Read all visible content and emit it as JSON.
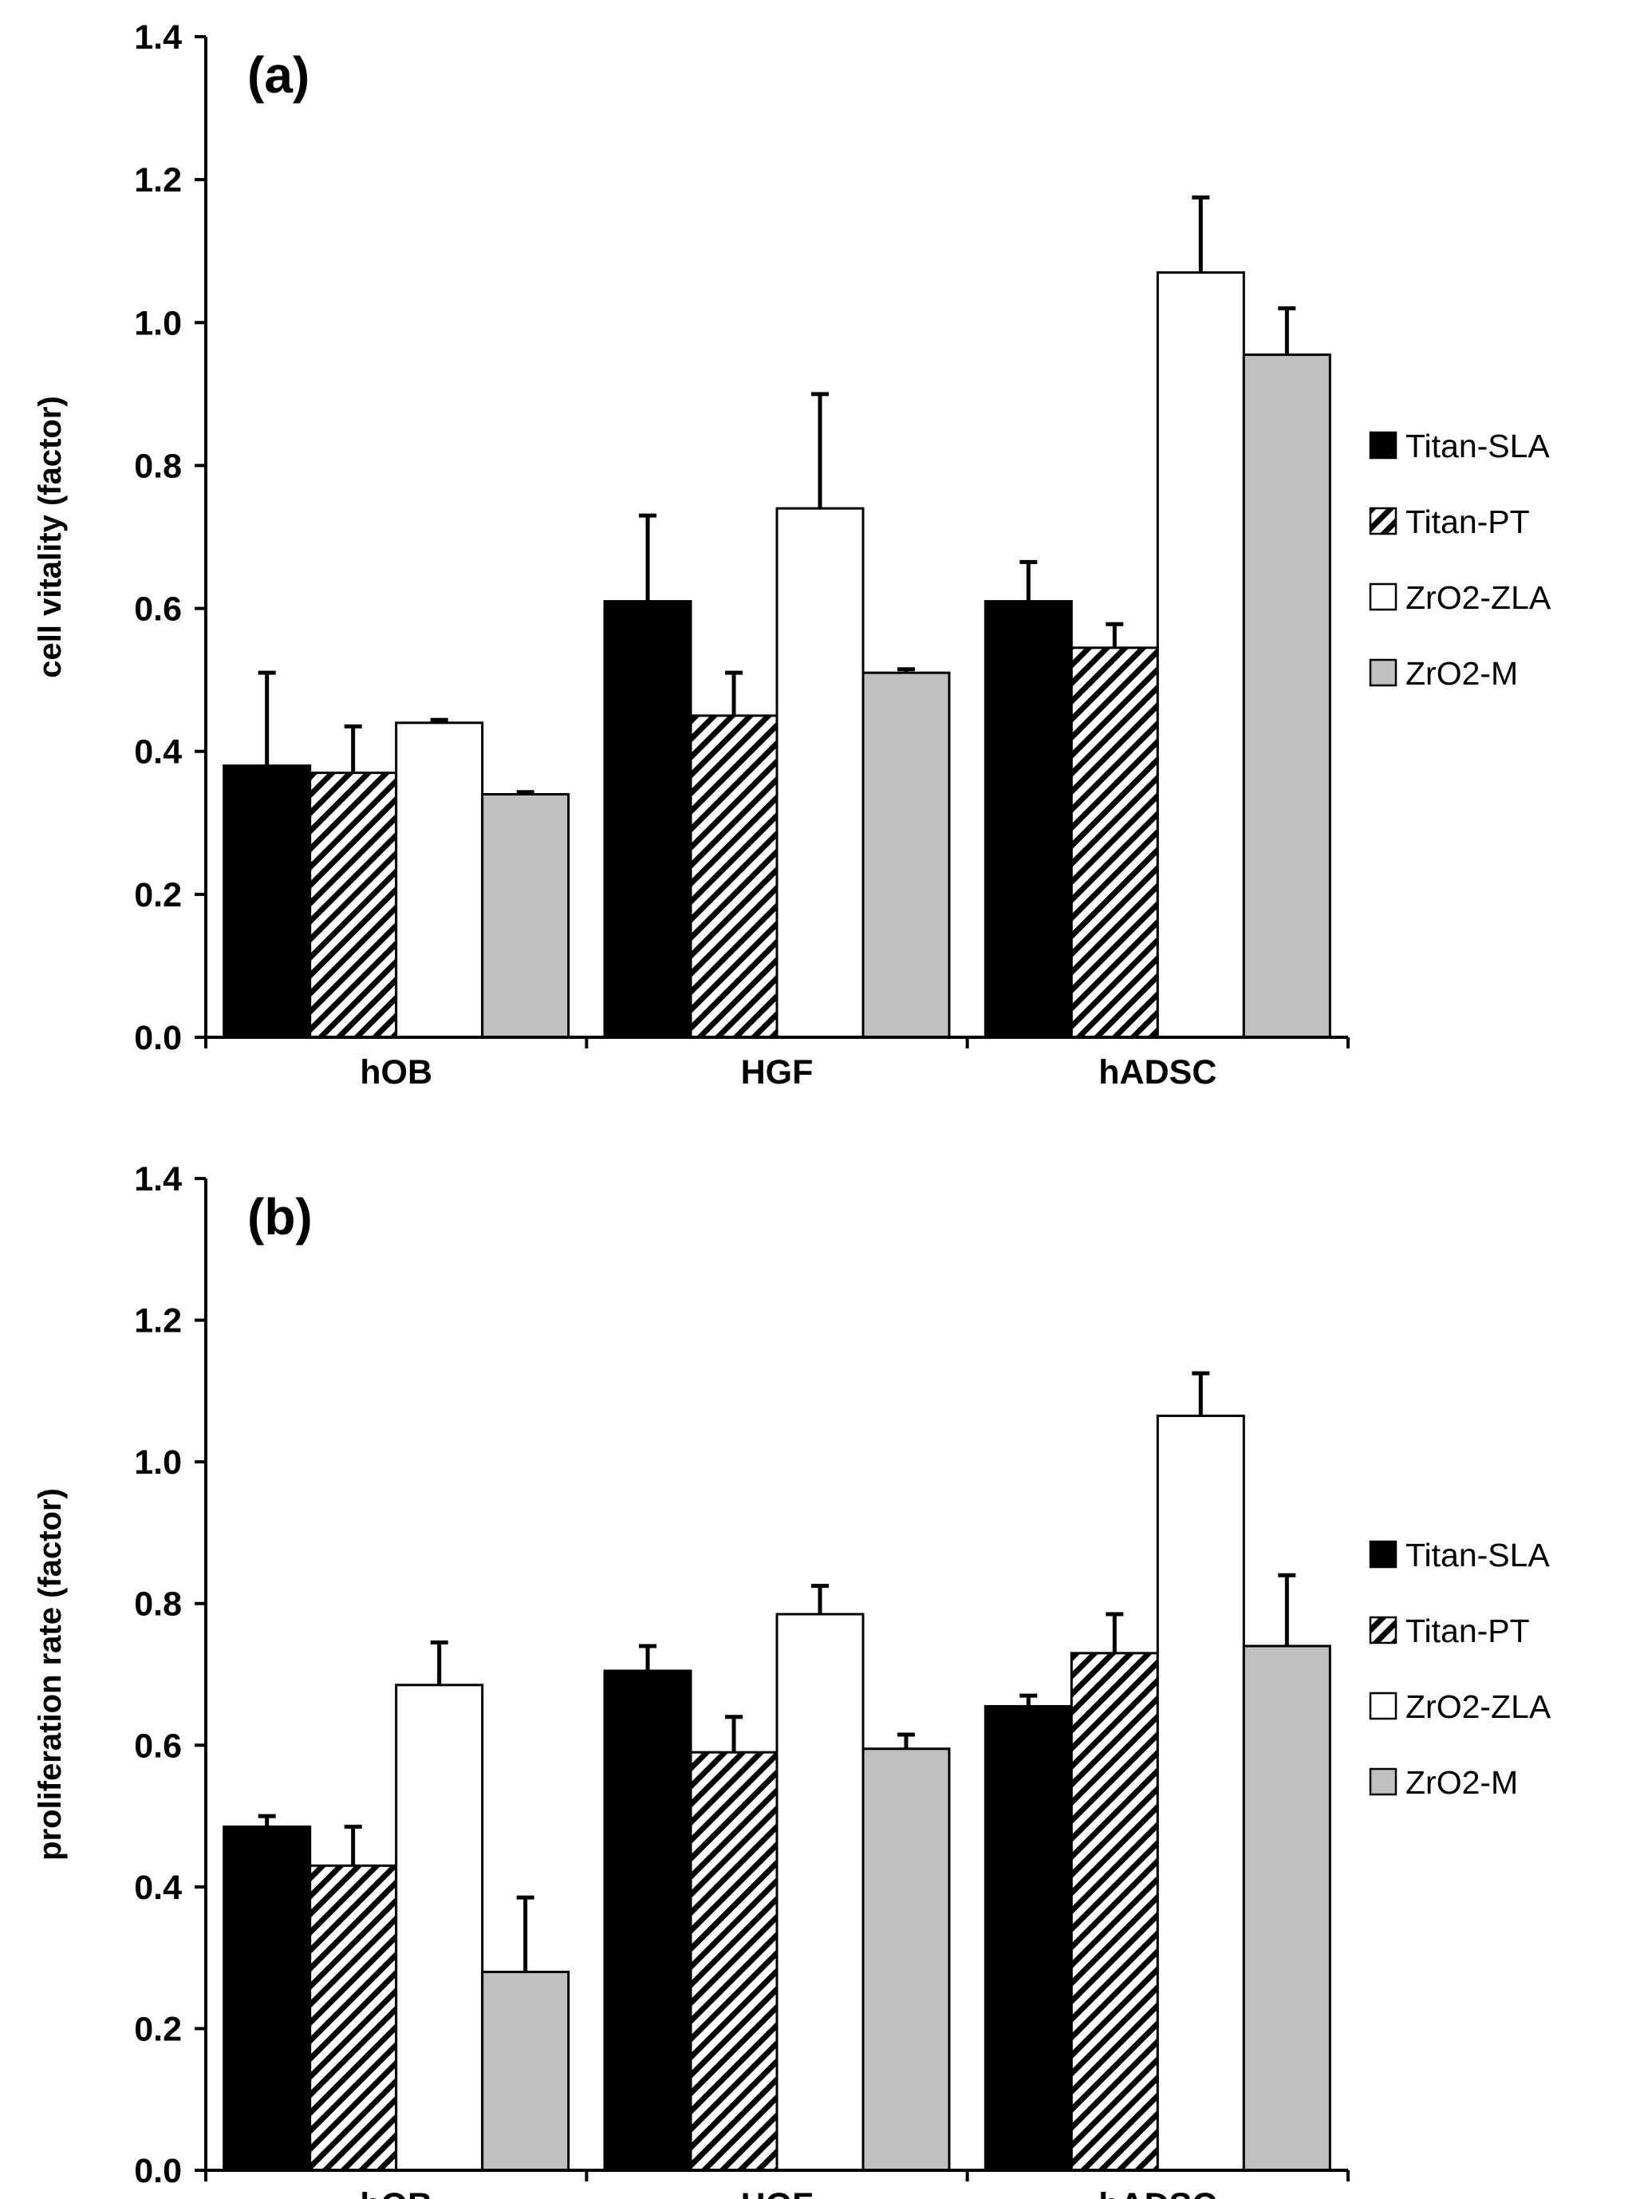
{
  "chart_data": [
    {
      "type": "bar",
      "panel_label": "(a)",
      "ylabel": "cell vitality (factor)",
      "ylim": [
        0,
        1.4
      ],
      "yticks": [
        "0.0",
        "0.2",
        "0.4",
        "0.6",
        "0.8",
        "1.0",
        "1.2",
        "1.4"
      ],
      "categories": [
        "hOB",
        "HGF",
        "hADSC"
      ],
      "legend_position": "right",
      "series": [
        {
          "name": "Titan-SLA",
          "style": "solid-black",
          "values": [
            0.38,
            0.61,
            0.61
          ],
          "errors": [
            0.13,
            0.12,
            0.055
          ]
        },
        {
          "name": "Titan-PT",
          "style": "hatched",
          "values": [
            0.37,
            0.45,
            0.545
          ],
          "errors": [
            0.065,
            0.06,
            0.033
          ]
        },
        {
          "name": "ZrO2-ZLA",
          "style": "white",
          "values": [
            0.44,
            0.74,
            1.07
          ],
          "errors": [
            0.004,
            0.16,
            0.105
          ]
        },
        {
          "name": "ZrO2-M",
          "style": "gray",
          "values": [
            0.34,
            0.51,
            0.955
          ],
          "errors": [
            0.003,
            0.005,
            0.065
          ]
        }
      ]
    },
    {
      "type": "bar",
      "panel_label": "(b)",
      "ylabel": "proliferation rate (factor)",
      "ylim": [
        0,
        1.4
      ],
      "yticks": [
        "0.0",
        "0.2",
        "0.4",
        "0.6",
        "0.8",
        "1.0",
        "1.2",
        "1.4"
      ],
      "categories": [
        "hOB",
        "HGF",
        "hADSC"
      ],
      "legend_position": "right",
      "series": [
        {
          "name": "Titan-SLA",
          "style": "solid-black",
          "values": [
            0.485,
            0.705,
            0.655
          ],
          "errors": [
            0.015,
            0.035,
            0.015
          ]
        },
        {
          "name": "Titan-PT",
          "style": "hatched",
          "values": [
            0.43,
            0.59,
            0.73
          ],
          "errors": [
            0.055,
            0.05,
            0.055
          ]
        },
        {
          "name": "ZrO2-ZLA",
          "style": "white",
          "values": [
            0.685,
            0.785,
            1.065
          ],
          "errors": [
            0.06,
            0.04,
            0.06
          ]
        },
        {
          "name": "ZrO2-M",
          "style": "gray",
          "values": [
            0.28,
            0.595,
            0.74
          ],
          "errors": [
            0.105,
            0.02,
            0.1
          ]
        }
      ]
    }
  ]
}
